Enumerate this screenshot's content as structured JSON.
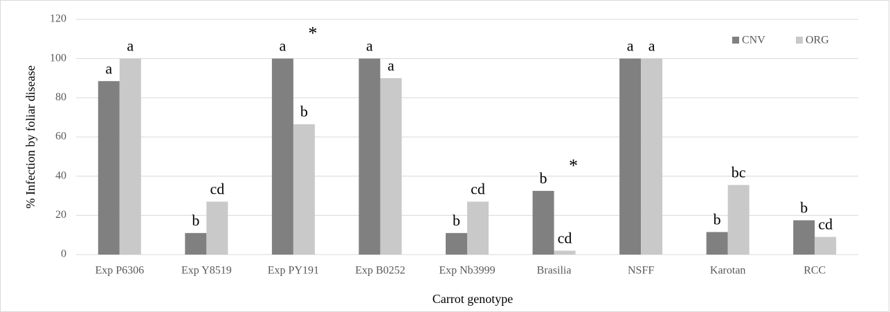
{
  "chart_data": {
    "type": "bar",
    "categories": [
      "Exp P6306",
      "Exp Y8519",
      "Exp PY191",
      "Exp B0252",
      "Exp Nb3999",
      "Brasilia",
      "NSFF",
      "Karotan",
      "RCC"
    ],
    "series": [
      {
        "name": "CNV",
        "color": "#808080",
        "values": [
          88.5,
          11,
          100,
          100,
          11,
          32.5,
          100,
          11.5,
          17.5
        ],
        "letters": [
          "a",
          "b",
          "a",
          "a",
          "b",
          "b",
          "a",
          "b",
          "b"
        ]
      },
      {
        "name": "ORG",
        "color": "#c9c9c9",
        "values": [
          100,
          27,
          66.5,
          90,
          27,
          2,
          100,
          35.5,
          9
        ],
        "letters": [
          "a",
          "cd",
          "b",
          "a",
          "cd",
          "cd",
          "a",
          "bc",
          "cd"
        ]
      }
    ],
    "asterisks": [
      {
        "category": "Exp PY191",
        "text": "*"
      },
      {
        "category": "Brasilia",
        "text": "*"
      }
    ],
    "xlabel": "Carrot genotype",
    "ylabel": "% Infection by foliar disease",
    "ylim": [
      0,
      120
    ],
    "yticks": [
      0,
      20,
      40,
      60,
      80,
      100,
      120
    ],
    "grid": true,
    "legend": "upper right"
  }
}
